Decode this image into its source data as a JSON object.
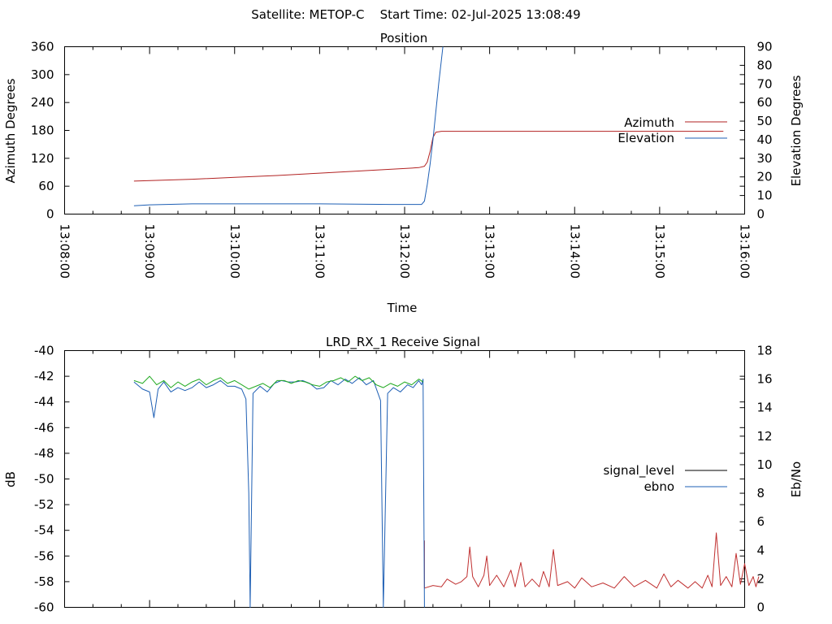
{
  "figure": {
    "suptitle": "Satellite: METOP-C    Start Time: 02-Jul-2025 13:08:49"
  },
  "colors": {
    "azimuth": "#b22222",
    "elevation": "#1e5fb4",
    "signal_level_legend": "#000000",
    "signal_level_trace": "#c03030",
    "ebno": "#1e5fb4",
    "ebno_overlay": "#22aa22"
  },
  "chart_data": [
    {
      "type": "line",
      "title": "Position",
      "xlabel": "Time",
      "ylabel": "Azimuth Degrees",
      "y2label": "Elevation Degrees",
      "xlim": [
        "13:08:00",
        "13:16:00"
      ],
      "ylim": [
        0,
        360
      ],
      "y2lim": [
        0,
        90
      ],
      "x_ticks": [
        "13:08:00",
        "13:09:00",
        "13:10:00",
        "13:11:00",
        "13:12:00",
        "13:13:00",
        "13:14:00",
        "13:15:00",
        "13:16:00"
      ],
      "y_ticks": [
        "0",
        "60",
        "120",
        "180",
        "240",
        "300",
        "360"
      ],
      "y2_ticks": [
        "0",
        "10",
        "20",
        "30",
        "40",
        "50",
        "60",
        "70",
        "80",
        "90"
      ],
      "legend_position": "right",
      "series": [
        {
          "name": "Azimuth",
          "axis": "left",
          "color_key": "azimuth",
          "points": [
            [
              "13:08:49",
              71
            ],
            [
              "13:09:30",
              75
            ],
            [
              "13:10:00",
              79
            ],
            [
              "13:10:30",
              83
            ],
            [
              "13:11:00",
              88
            ],
            [
              "13:11:30",
              93
            ],
            [
              "13:12:00",
              98
            ],
            [
              "13:12:10",
              100
            ],
            [
              "13:12:14",
              103
            ],
            [
              "13:12:16",
              112
            ],
            [
              "13:12:18",
              135
            ],
            [
              "13:12:20",
              165
            ],
            [
              "13:12:22",
              176
            ],
            [
              "13:12:26",
              178
            ],
            [
              "13:13:00",
              178
            ],
            [
              "13:14:00",
              178
            ],
            [
              "13:15:00",
              178
            ],
            [
              "13:15:45",
              178
            ]
          ]
        },
        {
          "name": "Elevation",
          "axis": "right",
          "color_key": "elevation",
          "points": [
            [
              "13:08:49",
              4.5
            ],
            [
              "13:09:00",
              5.0
            ],
            [
              "13:09:30",
              5.5
            ],
            [
              "13:10:00",
              5.5
            ],
            [
              "13:11:00",
              5.5
            ],
            [
              "13:11:50",
              5.2
            ],
            [
              "13:12:12",
              5.2
            ],
            [
              "13:12:14",
              7
            ],
            [
              "13:12:16",
              16
            ],
            [
              "13:12:18",
              27
            ],
            [
              "13:12:20",
              40
            ],
            [
              "13:12:22",
              55
            ],
            [
              "13:12:24",
              70
            ],
            [
              "13:12:26",
              83
            ],
            [
              "13:12:27",
              90
            ]
          ]
        }
      ]
    },
    {
      "type": "line",
      "title": "LRD_RX_1 Receive Signal",
      "xlabel": "",
      "ylabel": "dB",
      "y2label": "Eb/No",
      "xlim": [
        "13:08:00",
        "13:16:00"
      ],
      "ylim": [
        -60,
        -40
      ],
      "y2lim": [
        0,
        18
      ],
      "y_ticks": [
        "-60",
        "-58",
        "-56",
        "-54",
        "-52",
        "-50",
        "-48",
        "-46",
        "-44",
        "-42",
        "-40"
      ],
      "y2_ticks": [
        "0",
        "2",
        "4",
        "6",
        "8",
        "10",
        "12",
        "14",
        "16",
        "18"
      ],
      "legend_position": "right",
      "legend": [
        {
          "name": "signal_level",
          "color_key": "signal_level_legend"
        },
        {
          "name": "ebno",
          "color_key": "ebno"
        }
      ],
      "series": [
        {
          "name": "signal_level",
          "axis": "left",
          "color_key": "signal_level_trace",
          "points": [
            [
              "13:12:14",
              -54.8
            ],
            [
              "13:12:14",
              -58.5
            ],
            [
              "13:12:20",
              -58.3
            ],
            [
              "13:12:26",
              -58.4
            ],
            [
              "13:12:30",
              -57.8
            ],
            [
              "13:12:36",
              -58.2
            ],
            [
              "13:12:40",
              -58.0
            ],
            [
              "13:12:44",
              -57.6
            ],
            [
              "13:12:46",
              -55.3
            ],
            [
              "13:12:48",
              -57.6
            ],
            [
              "13:12:52",
              -58.4
            ],
            [
              "13:12:56",
              -57.5
            ],
            [
              "13:12:58",
              -56.0
            ],
            [
              "13:13:00",
              -58.3
            ],
            [
              "13:13:05",
              -57.5
            ],
            [
              "13:13:10",
              -58.4
            ],
            [
              "13:13:15",
              -57.1
            ],
            [
              "13:13:18",
              -58.4
            ],
            [
              "13:13:22",
              -56.5
            ],
            [
              "13:13:25",
              -58.4
            ],
            [
              "13:13:30",
              -57.8
            ],
            [
              "13:13:35",
              -58.4
            ],
            [
              "13:13:38",
              -57.2
            ],
            [
              "13:13:42",
              -58.4
            ],
            [
              "13:13:45",
              -55.5
            ],
            [
              "13:13:48",
              -58.3
            ],
            [
              "13:13:55",
              -58.0
            ],
            [
              "13:14:00",
              -58.5
            ],
            [
              "13:14:05",
              -57.7
            ],
            [
              "13:14:12",
              -58.4
            ],
            [
              "13:14:20",
              -58.1
            ],
            [
              "13:14:28",
              -58.5
            ],
            [
              "13:14:35",
              -57.6
            ],
            [
              "13:14:42",
              -58.4
            ],
            [
              "13:14:50",
              -57.9
            ],
            [
              "13:14:58",
              -58.5
            ],
            [
              "13:15:03",
              -57.4
            ],
            [
              "13:15:08",
              -58.4
            ],
            [
              "13:15:13",
              -57.9
            ],
            [
              "13:15:20",
              -58.5
            ],
            [
              "13:15:25",
              -58.0
            ],
            [
              "13:15:30",
              -58.5
            ],
            [
              "13:15:34",
              -57.5
            ],
            [
              "13:15:37",
              -58.4
            ],
            [
              "13:15:40",
              -54.2
            ],
            [
              "13:15:43",
              -58.3
            ],
            [
              "13:15:47",
              -57.6
            ],
            [
              "13:15:51",
              -58.4
            ],
            [
              "13:15:54",
              -55.8
            ],
            [
              "13:15:57",
              -58.2
            ],
            [
              "13:16:00",
              -56.6
            ],
            [
              "13:16:03",
              -58.3
            ],
            [
              "13:16:06",
              -57.6
            ],
            [
              "13:16:08",
              -58.4
            ],
            [
              "13:16:10",
              -57.6
            ]
          ]
        },
        {
          "name": "ebno",
          "axis": "right",
          "color_key": "ebno",
          "points": [
            [
              "13:08:49",
              15.8
            ],
            [
              "13:08:55",
              15.3
            ],
            [
              "13:09:00",
              15.1
            ],
            [
              "13:09:03",
              13.3
            ],
            [
              "13:09:06",
              15.3
            ],
            [
              "13:09:10",
              15.8
            ],
            [
              "13:09:15",
              15.1
            ],
            [
              "13:09:20",
              15.4
            ],
            [
              "13:09:25",
              15.2
            ],
            [
              "13:09:30",
              15.4
            ],
            [
              "13:09:35",
              15.8
            ],
            [
              "13:09:40",
              15.4
            ],
            [
              "13:09:45",
              15.6
            ],
            [
              "13:09:50",
              15.9
            ],
            [
              "13:09:55",
              15.5
            ],
            [
              "13:10:00",
              15.5
            ],
            [
              "13:10:05",
              15.3
            ],
            [
              "13:10:08",
              14.6
            ],
            [
              "13:10:10",
              8.0
            ],
            [
              "13:10:11",
              0
            ],
            [
              "13:10:13",
              15.0
            ],
            [
              "13:10:18",
              15.5
            ],
            [
              "13:10:23",
              15.1
            ],
            [
              "13:10:28",
              15.7
            ],
            [
              "13:10:33",
              15.9
            ],
            [
              "13:10:38",
              15.8
            ],
            [
              "13:10:43",
              15.8
            ],
            [
              "13:10:48",
              15.9
            ],
            [
              "13:10:53",
              15.7
            ],
            [
              "13:10:58",
              15.3
            ],
            [
              "13:11:03",
              15.4
            ],
            [
              "13:11:08",
              15.9
            ],
            [
              "13:11:13",
              15.6
            ],
            [
              "13:11:18",
              16.0
            ],
            [
              "13:11:23",
              15.7
            ],
            [
              "13:11:28",
              16.1
            ],
            [
              "13:11:33",
              15.6
            ],
            [
              "13:11:38",
              15.9
            ],
            [
              "13:11:43",
              14.5
            ],
            [
              "13:11:45",
              0
            ],
            [
              "13:11:48",
              15.0
            ],
            [
              "13:11:52",
              15.4
            ],
            [
              "13:11:57",
              15.1
            ],
            [
              "13:12:02",
              15.6
            ],
            [
              "13:12:06",
              15.4
            ],
            [
              "13:12:10",
              15.9
            ],
            [
              "13:12:12",
              15.6
            ],
            [
              "13:12:13",
              16.0
            ],
            [
              "13:12:14",
              0
            ]
          ]
        },
        {
          "name": "",
          "axis": "right",
          "color_key": "ebno_overlay",
          "points": [
            [
              "13:08:49",
              15.9
            ],
            [
              "13:08:55",
              15.7
            ],
            [
              "13:09:00",
              16.2
            ],
            [
              "13:09:05",
              15.6
            ],
            [
              "13:09:10",
              15.9
            ],
            [
              "13:09:15",
              15.4
            ],
            [
              "13:09:20",
              15.8
            ],
            [
              "13:09:25",
              15.5
            ],
            [
              "13:09:30",
              15.8
            ],
            [
              "13:09:35",
              16.0
            ],
            [
              "13:09:40",
              15.6
            ],
            [
              "13:09:45",
              15.9
            ],
            [
              "13:09:50",
              16.1
            ],
            [
              "13:09:55",
              15.7
            ],
            [
              "13:10:00",
              15.9
            ],
            [
              "13:10:05",
              15.6
            ],
            [
              "13:10:10",
              15.3
            ],
            [
              "13:10:15",
              15.5
            ],
            [
              "13:10:20",
              15.7
            ],
            [
              "13:10:25",
              15.4
            ],
            [
              "13:10:30",
              15.9
            ],
            [
              "13:10:35",
              15.9
            ],
            [
              "13:10:40",
              15.7
            ],
            [
              "13:10:45",
              15.9
            ],
            [
              "13:10:50",
              15.8
            ],
            [
              "13:10:55",
              15.6
            ],
            [
              "13:11:00",
              15.5
            ],
            [
              "13:11:05",
              15.8
            ],
            [
              "13:11:10",
              15.9
            ],
            [
              "13:11:15",
              16.1
            ],
            [
              "13:11:20",
              15.8
            ],
            [
              "13:11:25",
              16.2
            ],
            [
              "13:11:30",
              15.9
            ],
            [
              "13:11:35",
              16.1
            ],
            [
              "13:11:40",
              15.6
            ],
            [
              "13:11:45",
              15.4
            ],
            [
              "13:11:50",
              15.7
            ],
            [
              "13:11:55",
              15.5
            ],
            [
              "13:12:00",
              15.8
            ],
            [
              "13:12:05",
              15.6
            ],
            [
              "13:12:10",
              16.0
            ],
            [
              "13:12:13",
              15.8
            ]
          ]
        }
      ]
    }
  ]
}
